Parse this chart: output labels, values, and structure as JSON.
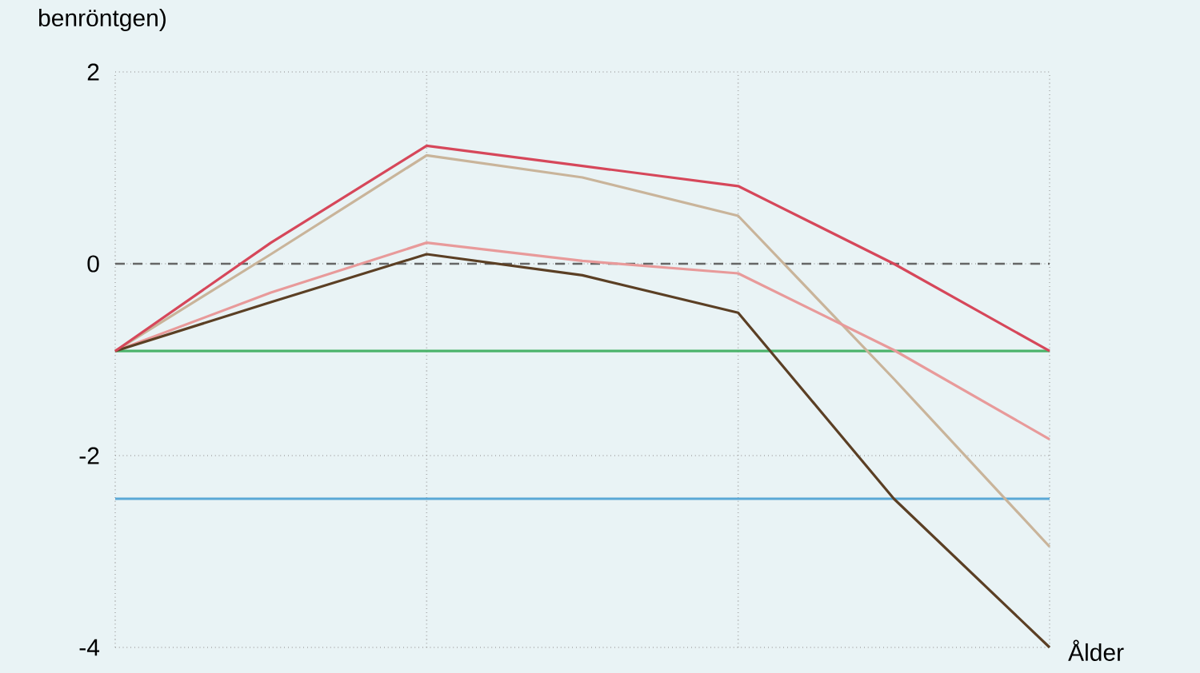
{
  "chart_data": {
    "type": "line",
    "ylabel": "benröntgen)",
    "xlabel": "Ålder",
    "categories": [
      null,
      null,
      null,
      null,
      null,
      null,
      null
    ],
    "series": [
      {
        "color": "#4cb36b",
        "values": [
          -0.91,
          -0.91,
          -0.91,
          -0.91,
          -0.91,
          -0.91,
          -0.91
        ]
      },
      {
        "color": "#5aa8d6",
        "values": [
          -2.45,
          -2.45,
          -2.45,
          -2.45,
          -2.45,
          -2.45,
          -2.45
        ]
      },
      {
        "color": "#c9b49a",
        "values": [
          -0.91,
          0.1,
          1.13,
          0.9,
          0.5,
          -1.2,
          -2.95
        ]
      },
      {
        "color": "#e89a9a",
        "values": [
          -0.91,
          -0.3,
          0.22,
          0.03,
          -0.1,
          -0.9,
          -1.83
        ]
      },
      {
        "color": "#5b3f24",
        "values": [
          -0.91,
          -0.4,
          0.1,
          -0.12,
          -0.51,
          -2.45,
          -4.0
        ]
      },
      {
        "color": "#d6475a",
        "values": [
          -0.91,
          0.22,
          1.23,
          1.02,
          0.81,
          0.0,
          -0.91
        ]
      }
    ],
    "ylim": [
      -4,
      2
    ],
    "yticks": [
      -4,
      -2,
      0,
      2
    ],
    "grid": true,
    "line_style": "solid",
    "marker": "none",
    "ref_lines": [
      {
        "axis": "y",
        "value": 0,
        "color": "#666666",
        "line_style": "dashed"
      }
    ]
  }
}
